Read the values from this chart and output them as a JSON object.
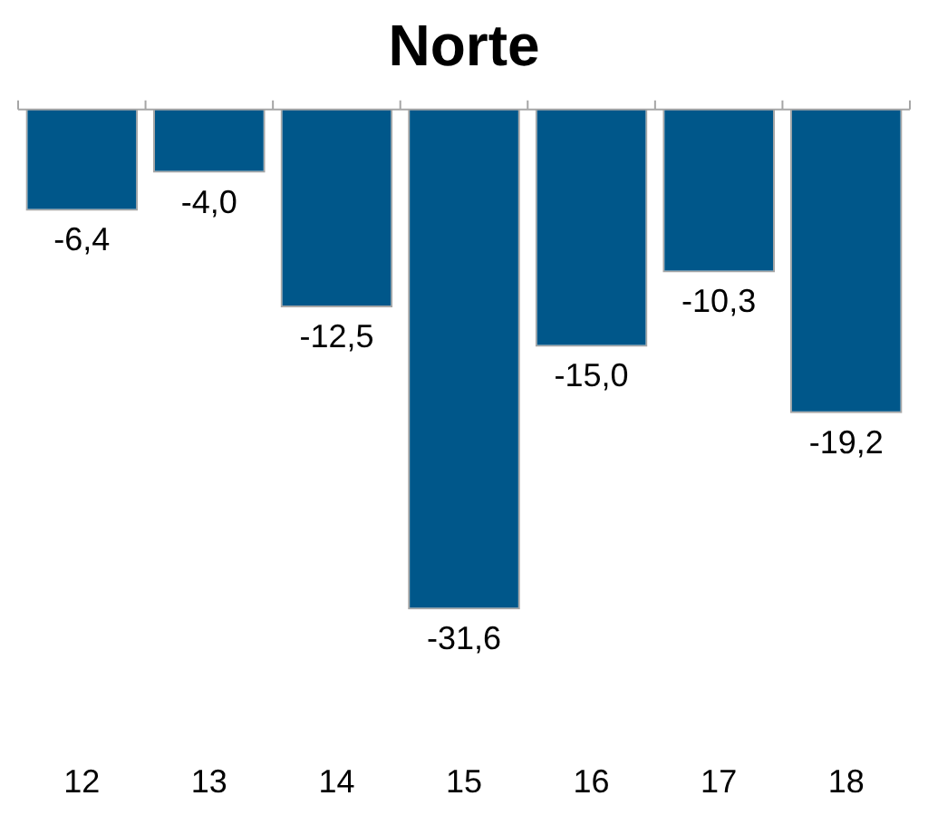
{
  "chart_data": {
    "type": "bar",
    "title": "Norte",
    "categories": [
      "12",
      "13",
      "14",
      "15",
      "16",
      "17",
      "18"
    ],
    "values": [
      -6.4,
      -4.0,
      -12.5,
      -31.6,
      -15.0,
      -10.3,
      -19.2
    ],
    "value_labels": [
      "-6,4",
      "-4,0",
      "-12,5",
      "-31,6",
      "-15,0",
      "-10,3",
      "-19,2"
    ],
    "color": "#00578a",
    "legend": false,
    "grid": false
  }
}
